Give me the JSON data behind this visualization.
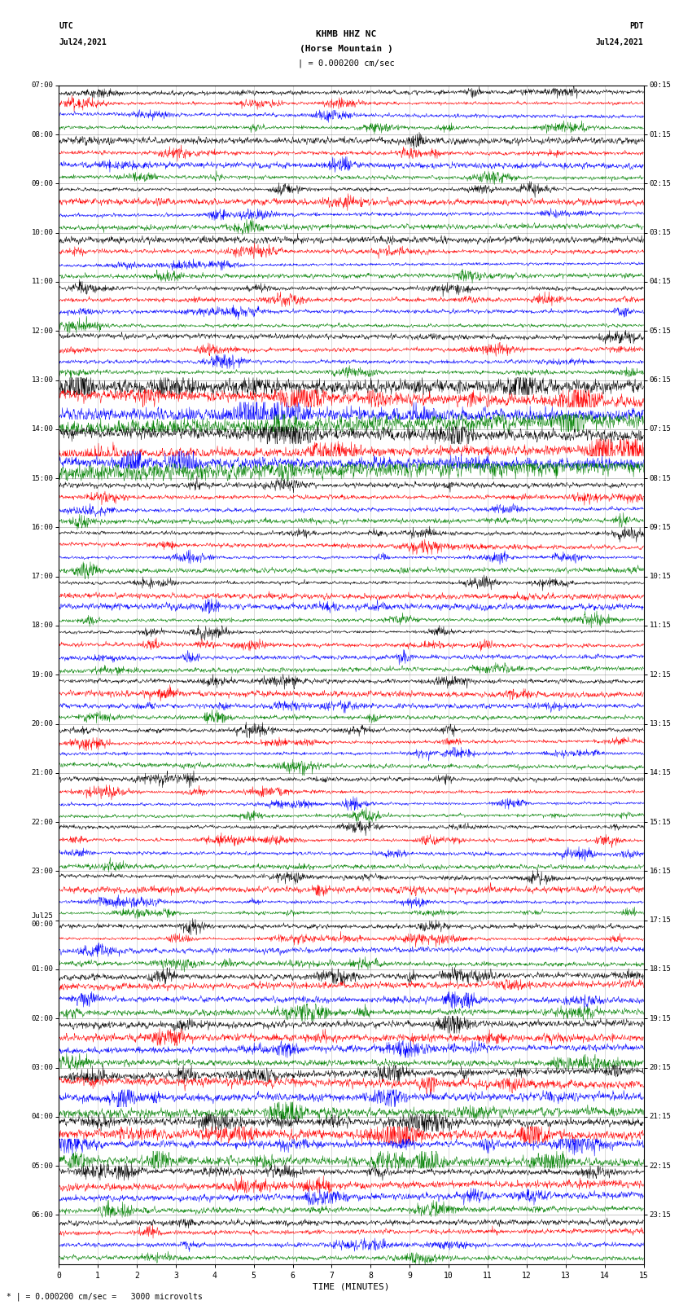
{
  "title_line1": "KHMB HHZ NC",
  "title_line2": "(Horse Mountain )",
  "title_line3": "| = 0.000200 cm/sec",
  "left_header_line1": "UTC",
  "left_header_line2": "Jul24,2021",
  "right_header_line1": "PDT",
  "right_header_line2": "Jul24,2021",
  "xlabel": "TIME (MINUTES)",
  "footer": "* | = 0.000200 cm/sec =   3000 microvolts",
  "utc_times": [
    "07:00",
    "08:00",
    "09:00",
    "10:00",
    "11:00",
    "12:00",
    "13:00",
    "14:00",
    "15:00",
    "16:00",
    "17:00",
    "18:00",
    "19:00",
    "20:00",
    "21:00",
    "22:00",
    "23:00",
    "Jul25\n00:00",
    "01:00",
    "02:00",
    "03:00",
    "04:00",
    "05:00",
    "06:00"
  ],
  "pdt_times": [
    "00:15",
    "01:15",
    "02:15",
    "03:15",
    "04:15",
    "05:15",
    "06:15",
    "07:15",
    "08:15",
    "09:15",
    "10:15",
    "11:15",
    "12:15",
    "13:15",
    "14:15",
    "15:15",
    "16:15",
    "17:15",
    "18:15",
    "19:15",
    "20:15",
    "21:15",
    "22:15",
    "23:15"
  ],
  "n_rows": 24,
  "traces_per_row": 4,
  "colors": [
    "black",
    "red",
    "blue",
    "green"
  ],
  "x_min": 0,
  "x_max": 15,
  "x_ticks": [
    0,
    1,
    2,
    3,
    4,
    5,
    6,
    7,
    8,
    9,
    10,
    11,
    12,
    13,
    14,
    15
  ],
  "background_color": "white",
  "fig_width": 8.5,
  "fig_height": 16.13,
  "dpi": 100
}
